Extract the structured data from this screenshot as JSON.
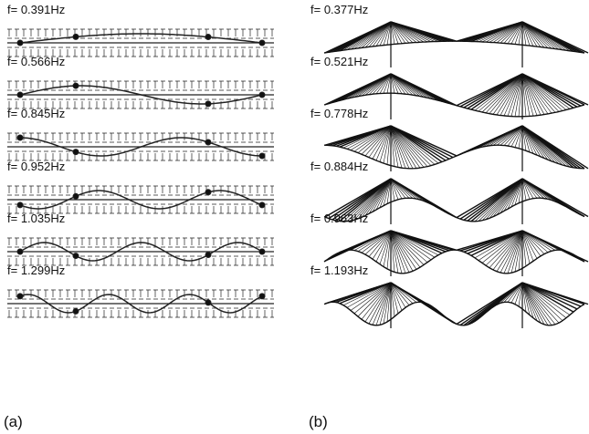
{
  "panels": [
    {
      "label": "(a)",
      "modes": [
        "f= 0.391Hz",
        "f= 0.566Hz",
        "f= 0.845Hz",
        "f= 0.952Hz",
        "f= 1.035Hz",
        "f= 1.299Hz"
      ]
    },
    {
      "label": "(b)",
      "modes": [
        "f= 0.377Hz",
        "f= 0.521Hz",
        "f= 0.778Hz",
        "f= 0.884Hz",
        "f= 0.963Hz",
        "f= 1.193Hz"
      ]
    }
  ]
}
